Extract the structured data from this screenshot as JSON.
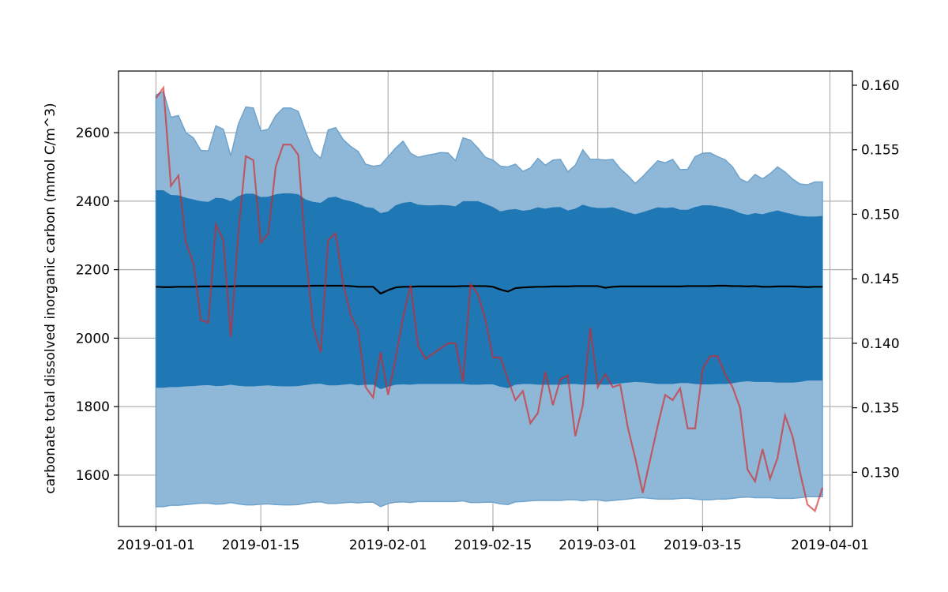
{
  "chart_data": {
    "type": "area",
    "title": "",
    "xlabel": "",
    "ylabel": "carbonate total dissolved inorganic carbon (mmol C/m^3)",
    "grid": true,
    "legend": "none",
    "x_range": [
      "2018-12-27",
      "2019-04-04"
    ],
    "xticks": [
      "2019-01-01",
      "2019-01-15",
      "2019-02-01",
      "2019-02-15",
      "2019-03-01",
      "2019-03-15",
      "2019-04-01"
    ],
    "y_range": [
      1450,
      2780
    ],
    "yticks": [
      1600,
      1800,
      2000,
      2200,
      2400,
      2600
    ],
    "y2_range": [
      0.1258,
      0.1611
    ],
    "y2ticks": [
      0.13,
      0.135,
      0.14,
      0.145,
      0.15,
      0.155,
      0.16
    ],
    "y2tick_labels": [
      "0.130",
      "0.135",
      "0.140",
      "0.145",
      "0.150",
      "0.155",
      "0.160"
    ],
    "dates": [
      "2019-01-01",
      "2019-01-02",
      "2019-01-03",
      "2019-01-04",
      "2019-01-05",
      "2019-01-06",
      "2019-01-07",
      "2019-01-08",
      "2019-01-09",
      "2019-01-10",
      "2019-01-11",
      "2019-01-12",
      "2019-01-13",
      "2019-01-14",
      "2019-01-15",
      "2019-01-16",
      "2019-01-17",
      "2019-01-18",
      "2019-01-19",
      "2019-01-20",
      "2019-01-21",
      "2019-01-22",
      "2019-01-23",
      "2019-01-24",
      "2019-01-25",
      "2019-01-26",
      "2019-01-27",
      "2019-01-28",
      "2019-01-29",
      "2019-01-30",
      "2019-01-31",
      "2019-02-01",
      "2019-02-02",
      "2019-02-03",
      "2019-02-04",
      "2019-02-05",
      "2019-02-06",
      "2019-02-07",
      "2019-02-08",
      "2019-02-09",
      "2019-02-10",
      "2019-02-11",
      "2019-02-12",
      "2019-02-13",
      "2019-02-14",
      "2019-02-15",
      "2019-02-16",
      "2019-02-17",
      "2019-02-18",
      "2019-02-19",
      "2019-02-20",
      "2019-02-21",
      "2019-02-22",
      "2019-02-23",
      "2019-02-24",
      "2019-02-25",
      "2019-02-26",
      "2019-02-27",
      "2019-02-28",
      "2019-03-01",
      "2019-03-02",
      "2019-03-03",
      "2019-03-04",
      "2019-03-05",
      "2019-03-06",
      "2019-03-07",
      "2019-03-08",
      "2019-03-09",
      "2019-03-10",
      "2019-03-11",
      "2019-03-12",
      "2019-03-13",
      "2019-03-14",
      "2019-03-15",
      "2019-03-16",
      "2019-03-17",
      "2019-03-18",
      "2019-03-19",
      "2019-03-20",
      "2019-03-21",
      "2019-03-22",
      "2019-03-23",
      "2019-03-24",
      "2019-03-25",
      "2019-03-26",
      "2019-03-27",
      "2019-03-28",
      "2019-03-29",
      "2019-03-30",
      "2019-03-31"
    ],
    "outer_upper": [
      2710,
      2720,
      2645,
      2650,
      2600,
      2585,
      2548,
      2547,
      2620,
      2610,
      2532,
      2625,
      2675,
      2672,
      2605,
      2610,
      2650,
      2672,
      2672,
      2662,
      2602,
      2545,
      2525,
      2608,
      2615,
      2580,
      2560,
      2545,
      2508,
      2502,
      2505,
      2530,
      2555,
      2575,
      2540,
      2528,
      2533,
      2537,
      2542,
      2541,
      2518,
      2585,
      2578,
      2555,
      2528,
      2520,
      2502,
      2500,
      2508,
      2487,
      2497,
      2525,
      2505,
      2520,
      2522,
      2486,
      2505,
      2550,
      2522,
      2522,
      2520,
      2522,
      2495,
      2475,
      2452,
      2472,
      2495,
      2518,
      2512,
      2522,
      2492,
      2493,
      2530,
      2540,
      2541,
      2530,
      2521,
      2500,
      2465,
      2455,
      2478,
      2465,
      2480,
      2500,
      2485,
      2465,
      2450,
      2448,
      2456,
      2456
    ],
    "inner_upper": [
      2432,
      2432,
      2418,
      2417,
      2410,
      2405,
      2400,
      2398,
      2410,
      2408,
      2400,
      2415,
      2422,
      2422,
      2412,
      2413,
      2420,
      2423,
      2423,
      2420,
      2405,
      2398,
      2395,
      2410,
      2413,
      2405,
      2400,
      2393,
      2383,
      2380,
      2365,
      2370,
      2388,
      2395,
      2398,
      2390,
      2388,
      2388,
      2389,
      2388,
      2385,
      2400,
      2400,
      2400,
      2392,
      2383,
      2370,
      2375,
      2377,
      2372,
      2375,
      2382,
      2378,
      2382,
      2383,
      2373,
      2378,
      2390,
      2383,
      2380,
      2380,
      2382,
      2375,
      2368,
      2362,
      2368,
      2375,
      2382,
      2380,
      2382,
      2375,
      2375,
      2383,
      2388,
      2388,
      2385,
      2380,
      2375,
      2365,
      2360,
      2365,
      2362,
      2368,
      2373,
      2367,
      2362,
      2357,
      2355,
      2355,
      2357
    ],
    "mean": [
      2150,
      2149,
      2149,
      2150,
      2150,
      2150,
      2151,
      2151,
      2151,
      2151,
      2151,
      2152,
      2152,
      2152,
      2152,
      2152,
      2152,
      2152,
      2152,
      2152,
      2152,
      2153,
      2153,
      2153,
      2153,
      2153,
      2152,
      2150,
      2150,
      2150,
      2130,
      2140,
      2148,
      2150,
      2150,
      2151,
      2151,
      2151,
      2151,
      2151,
      2151,
      2152,
      2152,
      2152,
      2152,
      2150,
      2142,
      2136,
      2146,
      2148,
      2149,
      2150,
      2150,
      2151,
      2151,
      2151,
      2152,
      2152,
      2152,
      2152,
      2147,
      2150,
      2151,
      2151,
      2151,
      2151,
      2151,
      2151,
      2151,
      2151,
      2151,
      2152,
      2152,
      2152,
      2152,
      2153,
      2153,
      2152,
      2152,
      2151,
      2152,
      2150,
      2150,
      2151,
      2151,
      2151,
      2150,
      2149,
      2150,
      2150
    ],
    "inner_lower": [
      1855,
      1855,
      1857,
      1857,
      1859,
      1860,
      1862,
      1863,
      1860,
      1861,
      1864,
      1861,
      1859,
      1859,
      1861,
      1862,
      1860,
      1859,
      1859,
      1860,
      1863,
      1866,
      1867,
      1862,
      1862,
      1864,
      1866,
      1862,
      1864,
      1864,
      1851,
      1858,
      1864,
      1865,
      1864,
      1866,
      1866,
      1866,
      1866,
      1866,
      1866,
      1866,
      1864,
      1864,
      1865,
      1865,
      1858,
      1854,
      1864,
      1866,
      1866,
      1864,
      1864,
      1864,
      1864,
      1866,
      1866,
      1864,
      1865,
      1865,
      1864,
      1865,
      1868,
      1870,
      1872,
      1871,
      1869,
      1866,
      1866,
      1866,
      1869,
      1869,
      1866,
      1865,
      1865,
      1866,
      1866,
      1868,
      1872,
      1874,
      1872,
      1872,
      1872,
      1870,
      1870,
      1870,
      1872,
      1876,
      1876,
      1876
    ],
    "outer_lower": [
      1508,
      1508,
      1512,
      1512,
      1514,
      1516,
      1518,
      1518,
      1515,
      1516,
      1520,
      1516,
      1513,
      1513,
      1515,
      1516,
      1514,
      1513,
      1513,
      1514,
      1518,
      1521,
      1522,
      1517,
      1517,
      1519,
      1521,
      1519,
      1521,
      1521,
      1508,
      1517,
      1521,
      1522,
      1520,
      1523,
      1523,
      1523,
      1523,
      1523,
      1523,
      1525,
      1520,
      1520,
      1521,
      1521,
      1516,
      1514,
      1522,
      1523,
      1525,
      1526,
      1526,
      1526,
      1526,
      1528,
      1528,
      1525,
      1528,
      1528,
      1524,
      1526,
      1528,
      1530,
      1533,
      1534,
      1532,
      1530,
      1530,
      1530,
      1532,
      1533,
      1530,
      1528,
      1528,
      1530,
      1530,
      1532,
      1535,
      1536,
      1534,
      1534,
      1534,
      1532,
      1532,
      1532,
      1534,
      1537,
      1537,
      1537
    ],
    "ratio_series": [
      0.159,
      0.1598,
      0.1522,
      0.153,
      0.1478,
      0.1462,
      0.1418,
      0.1416,
      0.1492,
      0.148,
      0.1405,
      0.1485,
      0.1545,
      0.1542,
      0.1478,
      0.1485,
      0.1537,
      0.1554,
      0.1554,
      0.1546,
      0.147,
      0.1413,
      0.1393,
      0.148,
      0.1485,
      0.1446,
      0.1422,
      0.141,
      0.1366,
      0.1358,
      0.1393,
      0.136,
      0.1388,
      0.142,
      0.1445,
      0.1398,
      0.1388,
      0.1392,
      0.1396,
      0.14,
      0.14,
      0.137,
      0.1446,
      0.1438,
      0.1418,
      0.1389,
      0.1389,
      0.1372,
      0.1356,
      0.1363,
      0.1338,
      0.1346,
      0.1378,
      0.1352,
      0.1372,
      0.1375,
      0.1328,
      0.1352,
      0.1412,
      0.1366,
      0.1376,
      0.1366,
      0.1368,
      0.1335,
      0.1311,
      0.1284,
      0.131,
      0.1336,
      0.136,
      0.1356,
      0.1365,
      0.1334,
      0.1334,
      0.138,
      0.139,
      0.139,
      0.1376,
      0.1366,
      0.135,
      0.1302,
      0.1293,
      0.1318,
      0.1295,
      0.1311,
      0.1344,
      0.1328,
      0.13,
      0.1275,
      0.127,
      0.1288
    ],
    "colors": {
      "outer_band": "#8fb8d8",
      "outer_band_edge": "#6fa3cc",
      "inner_band": "#1f77b4",
      "mean_line": "#000000",
      "ratio_line": "#d62728",
      "grid": "#b0b0b0"
    }
  }
}
